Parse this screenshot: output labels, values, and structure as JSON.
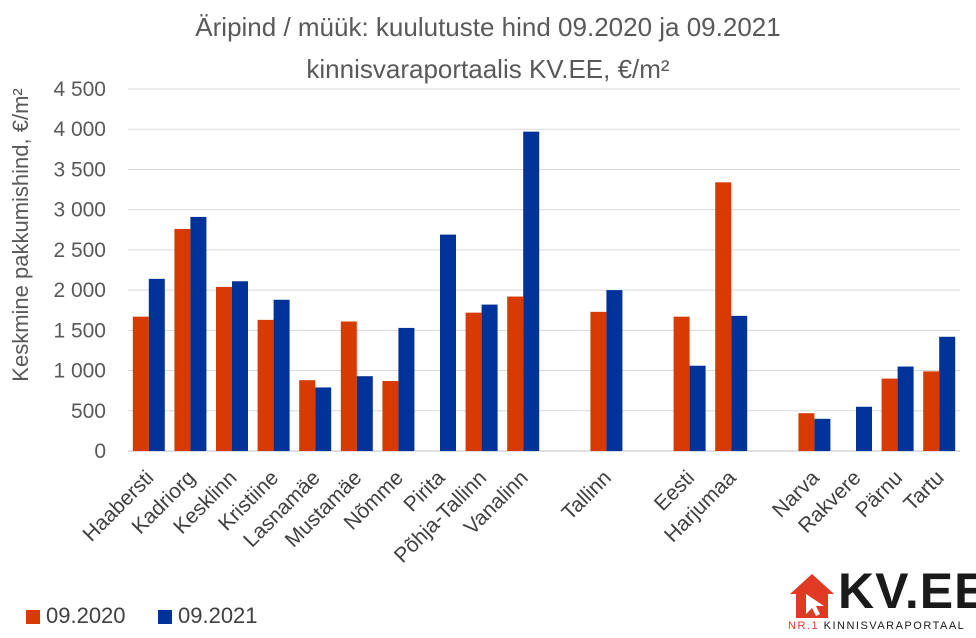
{
  "chart_data": {
    "type": "bar",
    "title": "Äripind / müük: kuulutuste hind 09.2020 ja 09.2021",
    "subtitle": "kinnisvaraportaalis KV.EE, €/m²",
    "ylabel": "Keskmine pakkumishind, €/m²",
    "xlabel": "",
    "ylim": [
      0,
      4500
    ],
    "yticks": [
      "0",
      "500",
      "1 000",
      "1 500",
      "2 000",
      "2 500",
      "3 000",
      "3 500",
      "4 000",
      "4 500"
    ],
    "grid": true,
    "legend_position": "bottom-left",
    "categories": [
      "Haabersti",
      "Kadriorg",
      "Kesklinn",
      "Kristiine",
      "Lasnamäe",
      "Mustamäe",
      "Nõmme",
      "Pirita",
      "Põhja-Tallinn",
      "Vanalinn",
      "",
      "Tallinn",
      "",
      "Eesti",
      "Harjumaa",
      "",
      "Narva",
      "Rakvere",
      "Pärnu",
      "Tartu"
    ],
    "series": [
      {
        "name": "09.2020",
        "color": "#d83b01",
        "values": [
          1670,
          2760,
          2040,
          1630,
          880,
          1610,
          870,
          null,
          1720,
          1920,
          null,
          1730,
          null,
          1670,
          3340,
          null,
          470,
          null,
          900,
          990
        ]
      },
      {
        "name": "09.2021",
        "color": "#003399",
        "values": [
          2140,
          2910,
          2110,
          1880,
          790,
          930,
          1530,
          2690,
          1820,
          3970,
          null,
          2000,
          null,
          1060,
          1680,
          null,
          400,
          550,
          1050,
          1420
        ]
      }
    ]
  },
  "logo": {
    "text": "KV.EE",
    "tag_red": "NR.1",
    "tag_rest": "KINNISVARAPORTAAL"
  }
}
